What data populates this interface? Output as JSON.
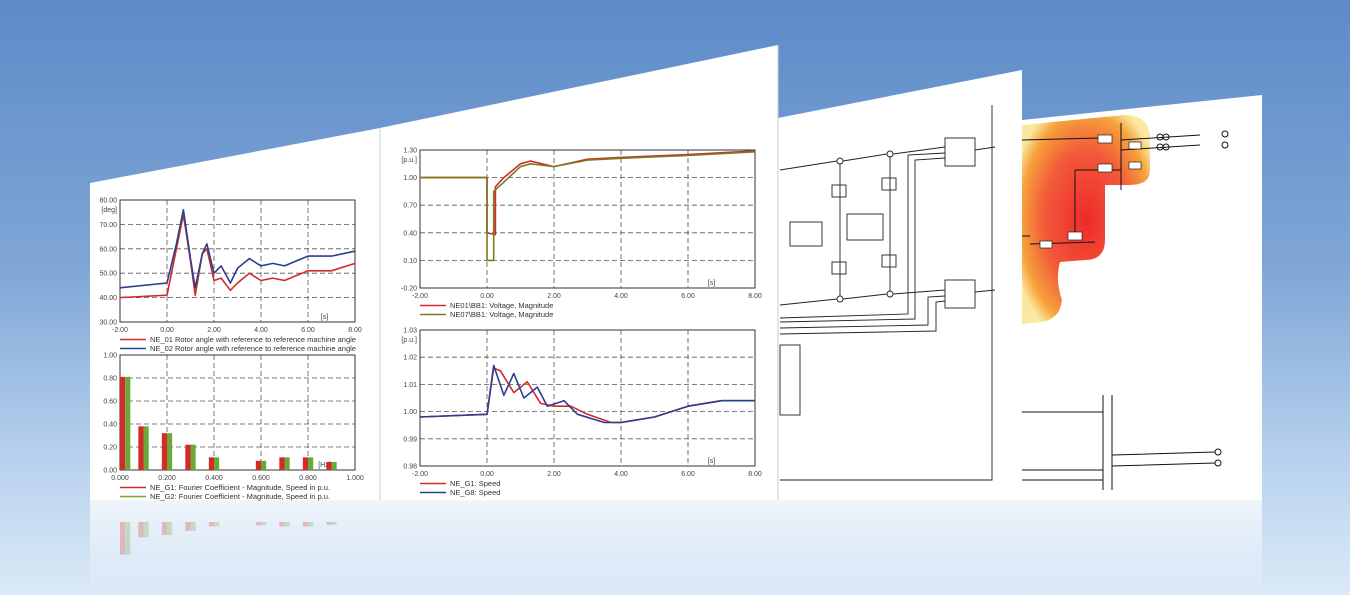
{
  "colors": {
    "red": "#d42a2a",
    "blue": "#2a3f8f",
    "green": "#6aa83a",
    "olive": "#7a7a1e",
    "background": "#6f9bd0"
  },
  "chart_data": [
    {
      "type": "line",
      "id": "rotor",
      "ylabel": "[deg]",
      "xlabel": "[s]",
      "xlim": [
        -2,
        8
      ],
      "ylim": [
        30,
        80
      ],
      "xticks": [
        "-2.00",
        "0.00",
        "2.00",
        "4.00",
        "6.00",
        "8.00"
      ],
      "yticks": [
        "30.00",
        "40.00",
        "50.00",
        "60.00",
        "70.00",
        "80.00"
      ],
      "grid": true,
      "series": [
        {
          "name": "NE_01 Rotor angle with reference to reference machine angle",
          "color": "#d42a2a",
          "x": [
            -2,
            0,
            0.4,
            0.7,
            1.0,
            1.2,
            1.5,
            1.7,
            2.0,
            2.3,
            2.7,
            3.0,
            3.5,
            4.0,
            4.5,
            5,
            6,
            7,
            8
          ],
          "y": [
            40,
            41,
            60,
            74,
            55,
            41,
            58,
            60,
            47,
            48,
            43,
            46,
            50,
            47,
            48,
            47,
            51,
            51,
            54
          ]
        },
        {
          "name": "NE_02 Rotor angle with reference to reference machine angle",
          "color": "#2a3f8f",
          "x": [
            -2,
            0,
            0.4,
            0.7,
            1.0,
            1.2,
            1.5,
            1.7,
            2.0,
            2.3,
            2.7,
            3.0,
            3.5,
            4.0,
            4.5,
            5,
            6,
            7,
            8
          ],
          "y": [
            44,
            46,
            62,
            76,
            56,
            44,
            58,
            62,
            50,
            53,
            46,
            52,
            56,
            53,
            54,
            53,
            57,
            57,
            59
          ]
        }
      ]
    },
    {
      "type": "bar",
      "id": "fourier",
      "xlabel": "[Hz]",
      "xlim": [
        0,
        1
      ],
      "ylim": [
        0,
        1
      ],
      "xticks": [
        "0.000",
        "0.200",
        "0.400",
        "0.600",
        "0.800",
        "1.000"
      ],
      "yticks": [
        "0.00",
        "0.20",
        "0.40",
        "0.60",
        "0.80",
        "1.00"
      ],
      "grid": true,
      "categories": [
        0.0,
        0.1,
        0.2,
        0.3,
        0.4,
        0.6,
        0.7,
        0.8,
        0.9
      ],
      "series": [
        {
          "name": "NE_G1: Fourier Coefficient - Magnitude, Speed in p.u.",
          "color": "#d42a2a",
          "values": [
            0.81,
            0.38,
            0.32,
            0.22,
            0.11,
            0.08,
            0.11,
            0.11,
            0.07
          ]
        },
        {
          "name": "NE_G2: Fourier Coefficient - Magnitude, Speed in p.u.",
          "color": "#6aa83a",
          "values": [
            0.81,
            0.38,
            0.32,
            0.22,
            0.11,
            0.08,
            0.11,
            0.11,
            0.07
          ]
        }
      ]
    },
    {
      "type": "line",
      "id": "voltage",
      "ylabel": "[p.u.]",
      "xlabel": "[s]",
      "xlim": [
        -2,
        8
      ],
      "ylim": [
        -0.2,
        1.3
      ],
      "xticks": [
        "-2.00",
        "0.00",
        "2.00",
        "4.00",
        "6.00",
        "8.00"
      ],
      "yticks": [
        "-0.20",
        "0.10",
        "0.40",
        "0.70",
        "1.00",
        "1.30"
      ],
      "grid": true,
      "series": [
        {
          "name": "NE01\\BB1: Voltage, Magnitude",
          "color": "#d42a2a",
          "x": [
            -2,
            0,
            0,
            0.25,
            0.25,
            0.5,
            1,
            1.3,
            2,
            3,
            4,
            6,
            8
          ],
          "y": [
            1.0,
            1.0,
            0.4,
            0.38,
            0.9,
            1.0,
            1.15,
            1.18,
            1.12,
            1.2,
            1.22,
            1.25,
            1.29
          ]
        },
        {
          "name": "NE07\\BB1: Voltage, Magnitude",
          "color": "#7a7a1e",
          "x": [
            -2,
            0,
            0,
            0.2,
            0.2,
            0.5,
            1,
            1.3,
            2,
            3,
            4,
            6,
            8
          ],
          "y": [
            1.0,
            1.0,
            0.1,
            0.1,
            0.85,
            0.95,
            1.12,
            1.15,
            1.12,
            1.19,
            1.21,
            1.24,
            1.28
          ]
        }
      ]
    },
    {
      "type": "line",
      "id": "speed",
      "ylabel": "[p.u.]",
      "xlabel": "[s]",
      "xlim": [
        -2,
        8
      ],
      "ylim": [
        0.98,
        1.03
      ],
      "xticks": [
        "-2.00",
        "0.00",
        "2.00",
        "4.00",
        "6.00",
        "8.00"
      ],
      "yticks": [
        "0.98",
        "0.99",
        "1.00",
        "1.01",
        "1.02",
        "1.03"
      ],
      "grid": true,
      "series": [
        {
          "name": "NE_G1: Speed",
          "color": "#d42a2a",
          "x": [
            -2,
            0,
            0.2,
            0.4,
            0.8,
            1.2,
            1.6,
            2,
            2.5,
            3,
            3.7,
            4,
            5,
            6,
            7,
            8
          ],
          "y": [
            0.998,
            0.999,
            1.016,
            1.015,
            1.007,
            1.011,
            1.003,
            1.002,
            1.002,
            0.999,
            0.996,
            0.996,
            0.998,
            1.002,
            1.004,
            1.004
          ]
        },
        {
          "name": "NE_G8: Speed",
          "color": "#2a3f8f",
          "x": [
            -2,
            0,
            0.2,
            0.5,
            0.8,
            1.1,
            1.5,
            1.8,
            2.3,
            2.7,
            3.5,
            4,
            5,
            6,
            7,
            8
          ],
          "y": [
            0.998,
            0.999,
            1.017,
            1.006,
            1.014,
            1.005,
            1.009,
            1.002,
            1.004,
            0.999,
            0.996,
            0.996,
            0.998,
            1.002,
            1.004,
            1.004
          ]
        }
      ]
    }
  ]
}
